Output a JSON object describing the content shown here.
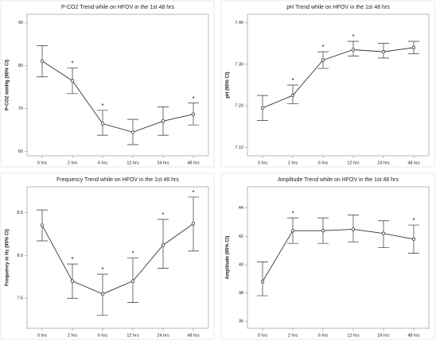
{
  "chart_data": [
    {
      "type": "line",
      "title": "P-CO2 Trend while on HFOV in the 1st 48 hrs",
      "y_label": "P-CO2 mmHg (95% CI)",
      "categories": [
        "0 hrs",
        "2 hrs",
        "6 hrs",
        "12 hrs",
        "24 hrs",
        "48 hrs"
      ],
      "values": [
        81.1,
        76.5,
        66.5,
        64.5,
        67.1,
        68.7
      ],
      "ci_low": [
        77.4,
        73.5,
        63.8,
        61.6,
        63.8,
        66.2
      ],
      "ci_high": [
        84.7,
        79.5,
        69.6,
        67.5,
        70.4,
        71.3
      ],
      "annotations": [
        null,
        "*",
        "*",
        null,
        null,
        "*"
      ],
      "ylim": [
        59,
        92
      ],
      "yticks": [
        60,
        70,
        80,
        90
      ],
      "color": "#333333"
    },
    {
      "type": "line",
      "title": "pH Trend while on HFOV in the 1st 48 hrs",
      "y_label": "pH (95% CI)",
      "categories": [
        "0 hrs",
        "2 hrs",
        "6 hrs",
        "12 hrs",
        "24 hrs",
        "48 hrs"
      ],
      "values": [
        7.195,
        7.225,
        7.31,
        7.335,
        7.33,
        7.34
      ],
      "ci_low": [
        7.165,
        7.205,
        7.29,
        7.32,
        7.315,
        7.325
      ],
      "ci_high": [
        7.225,
        7.25,
        7.33,
        7.355,
        7.35,
        7.355
      ],
      "annotations": [
        null,
        "*",
        "*",
        "*",
        null,
        null
      ],
      "ylim": [
        7.08,
        7.42
      ],
      "yticks": [
        {
          "value": 7.1,
          "label": "7.10"
        },
        {
          "value": 7.2,
          "label": "7.20"
        },
        {
          "value": 7.3,
          "label": "7.30"
        },
        {
          "value": 7.4,
          "label": "7.40"
        }
      ],
      "color": "#333333"
    },
    {
      "type": "line",
      "title": "Frequency Trend while on HFOV in the 1st 48 hrs",
      "y_label": "Frequency in Hz (95% CI)",
      "categories": [
        "0 hrs",
        "2 hrs",
        "6 hrs",
        "12 hrs",
        "24 hrs",
        "48 hrs"
      ],
      "values": [
        8.35,
        7.7,
        7.55,
        7.7,
        8.12,
        8.37
      ],
      "ci_low": [
        8.17,
        7.5,
        7.3,
        7.45,
        7.85,
        8.05
      ],
      "ci_high": [
        8.53,
        7.9,
        7.78,
        7.97,
        8.42,
        8.68
      ],
      "annotations": [
        null,
        "*",
        "*",
        "*",
        "*",
        "*"
      ],
      "ylim": [
        7.15,
        8.8
      ],
      "yticks": [
        7.5,
        {
          "value": 8,
          "label": "8.0"
        },
        8.5
      ],
      "color": "#333333"
    },
    {
      "type": "line",
      "title": "Amplitude Trend while on HFOV in the 1st 48 hrs",
      "y_label": "Amplitude (95% CI)",
      "categories": [
        "0 hrs",
        "2 hrs",
        "6 hrs",
        "12 hrs",
        "24 hrs",
        "48 hrs"
      ],
      "values": [
        38.8,
        42.4,
        42.4,
        42.5,
        42.2,
        41.8
      ],
      "ci_low": [
        37.8,
        41.5,
        41.5,
        41.6,
        41.2,
        40.8
      ],
      "ci_high": [
        40.2,
        43.3,
        43.3,
        43.5,
        43.1,
        42.8
      ],
      "annotations": [
        null,
        "*",
        null,
        null,
        null,
        "*"
      ],
      "ylim": [
        35.5,
        45.5
      ],
      "yticks": [
        36,
        38,
        40,
        42,
        44
      ],
      "color": "#333333"
    }
  ]
}
